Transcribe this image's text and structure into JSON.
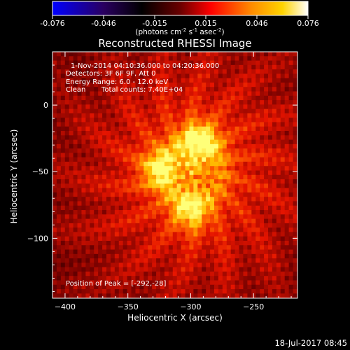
{
  "colorbar": {
    "ticks": [
      "-0.076",
      "-0.046",
      "-0.015",
      "0.015",
      "0.046",
      "0.076"
    ],
    "unit_main": "(photons cm",
    "unit_exp1": "-2",
    "unit_mid": " s",
    "unit_exp2": "-1",
    "unit_tail": " asec",
    "unit_exp3": "-2",
    "unit_close": ")",
    "colors": [
      "#0000ff",
      "#2a0060",
      "#000000",
      "#6a0000",
      "#ff0000",
      "#ff8c00",
      "#ffd400",
      "#ffffff"
    ]
  },
  "chart_data": {
    "type": "heatmap",
    "title": "Reconstructed RHESSI Image",
    "xlabel": "Heliocentric X (arcsec)",
    "ylabel": "Heliocentric Y (arcsec)",
    "xlim": [
      -410,
      -215
    ],
    "ylim": [
      -145,
      40
    ],
    "xticks": [
      -400,
      -350,
      -300,
      -250
    ],
    "yticks": [
      0,
      -50,
      -100
    ],
    "sources": [
      {
        "x": -293,
        "y": -27,
        "peak": 1.0
      },
      {
        "x": -326,
        "y": -48,
        "peak": 0.85
      },
      {
        "x": -300,
        "y": -80,
        "peak": 0.85
      }
    ],
    "annotations": {
      "time_range": "1-Nov-2014 04:10:36.000 to 04:20:36.000",
      "detectors": "Detectors: 3F 6F 9F, Att 0",
      "energy_range": "Energy Range: 6.0 - 12.0 keV",
      "method": "Clean",
      "total_counts": "Total counts: 7.40E+04",
      "peak_position": "Position of Peak = [-292,-28]"
    }
  },
  "footer": {
    "timestamp": "18-Jul-2017 08:45"
  }
}
